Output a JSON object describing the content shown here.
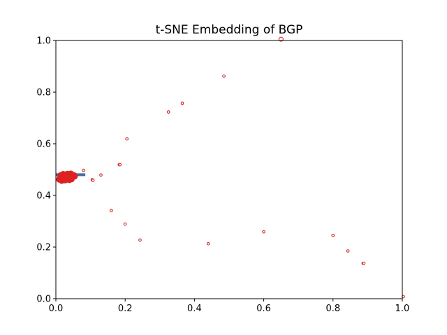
{
  "chart_data": {
    "type": "scatter",
    "title": "t-SNE Embedding of BGP",
    "xlabel": "",
    "ylabel": "",
    "xlim": [
      0.0,
      1.0
    ],
    "ylim": [
      0.0,
      1.0
    ],
    "xticks": [
      "0.0",
      "0.2",
      "0.4",
      "0.6",
      "0.8",
      "1.0"
    ],
    "yticks": [
      "0.0",
      "0.2",
      "0.4",
      "0.6",
      "0.8",
      "1.0"
    ],
    "grid": false,
    "colors": {
      "point_edge": "#d62728",
      "point_fill": "#ffffff",
      "cluster_fill": "#e02020",
      "band": "#4c6e96"
    },
    "band": {
      "x": [
        0.0,
        0.085
      ],
      "y": 0.48
    },
    "points": [
      {
        "x": 0.65,
        "y": 1.005,
        "size": 3
      },
      {
        "x": 0.485,
        "y": 0.862
      },
      {
        "x": 0.365,
        "y": 0.757
      },
      {
        "x": 0.325,
        "y": 0.723
      },
      {
        "x": 0.205,
        "y": 0.619
      },
      {
        "x": 0.183,
        "y": 0.519
      },
      {
        "x": 0.185,
        "y": 0.519
      },
      {
        "x": 0.08,
        "y": 0.497
      },
      {
        "x": 0.13,
        "y": 0.479
      },
      {
        "x": 0.105,
        "y": 0.461
      },
      {
        "x": 0.107,
        "y": 0.458
      },
      {
        "x": 0.16,
        "y": 0.341
      },
      {
        "x": 0.2,
        "y": 0.289
      },
      {
        "x": 0.243,
        "y": 0.227
      },
      {
        "x": 0.44,
        "y": 0.213
      },
      {
        "x": 0.6,
        "y": 0.259
      },
      {
        "x": 0.8,
        "y": 0.245
      },
      {
        "x": 0.843,
        "y": 0.185
      },
      {
        "x": 0.887,
        "y": 0.137
      },
      {
        "x": 0.889,
        "y": 0.137
      },
      {
        "x": 1.003,
        "y": 0.008
      }
    ],
    "cluster": [
      {
        "x": 0.01,
        "y": 0.462
      },
      {
        "x": 0.012,
        "y": 0.468
      },
      {
        "x": 0.015,
        "y": 0.474
      },
      {
        "x": 0.018,
        "y": 0.463
      },
      {
        "x": 0.02,
        "y": 0.47
      },
      {
        "x": 0.022,
        "y": 0.477
      },
      {
        "x": 0.024,
        "y": 0.465
      },
      {
        "x": 0.026,
        "y": 0.472
      },
      {
        "x": 0.028,
        "y": 0.48
      },
      {
        "x": 0.03,
        "y": 0.467
      },
      {
        "x": 0.032,
        "y": 0.474
      },
      {
        "x": 0.034,
        "y": 0.462
      },
      {
        "x": 0.036,
        "y": 0.47
      },
      {
        "x": 0.038,
        "y": 0.478
      },
      {
        "x": 0.04,
        "y": 0.466
      },
      {
        "x": 0.042,
        "y": 0.473
      },
      {
        "x": 0.044,
        "y": 0.481
      },
      {
        "x": 0.046,
        "y": 0.469
      },
      {
        "x": 0.048,
        "y": 0.476
      },
      {
        "x": 0.05,
        "y": 0.472
      },
      {
        "x": 0.014,
        "y": 0.478
      },
      {
        "x": 0.027,
        "y": 0.459
      },
      {
        "x": 0.039,
        "y": 0.46
      },
      {
        "x": 0.052,
        "y": 0.478
      },
      {
        "x": 0.054,
        "y": 0.474
      },
      {
        "x": 0.021,
        "y": 0.482
      },
      {
        "x": 0.033,
        "y": 0.483
      },
      {
        "x": 0.045,
        "y": 0.463
      },
      {
        "x": 0.017,
        "y": 0.457
      },
      {
        "x": 0.043,
        "y": 0.484
      }
    ]
  }
}
